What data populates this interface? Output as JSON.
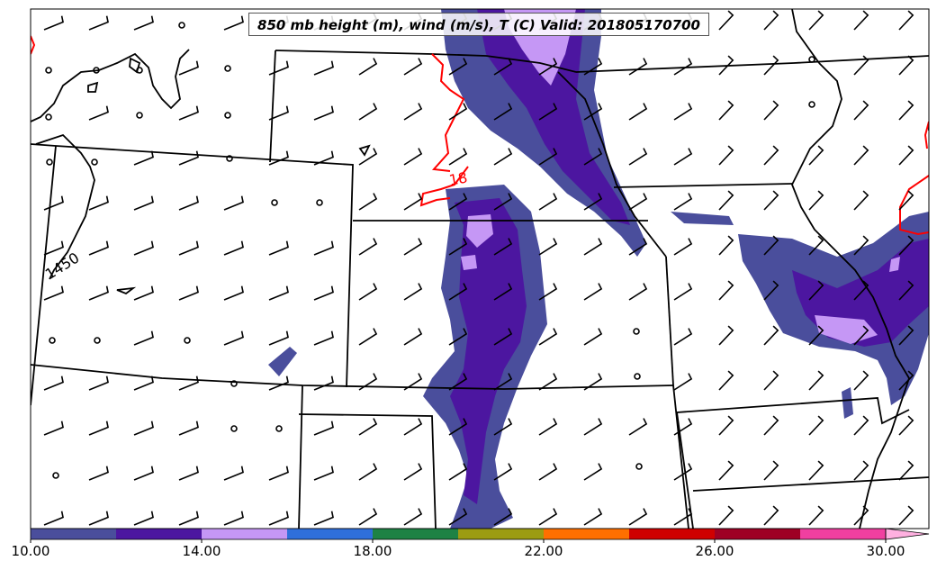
{
  "title": "850 mb height (m), wind (m/s), T (C) Valid: 201805170700",
  "contour_labels": {
    "height": "1450",
    "temperature": "18"
  },
  "colorbar": {
    "min": 10,
    "max": 30,
    "step": 2,
    "extend": "max",
    "colors": [
      "#4a4e9c",
      "#4c16a0",
      "#c597f5",
      "#2f6fdb",
      "#1d8244",
      "#9c9c12",
      "#ff6f00",
      "#cf0000",
      "#9e0024",
      "#f03fa0"
    ],
    "extend_color": "#ffb0e0",
    "ticks": [
      "10.00",
      "14.00",
      "18.00",
      "22.00",
      "26.00",
      "30.00"
    ]
  },
  "colors": {
    "height_contour": "#000000",
    "temperature_contour": "#ff0000",
    "boundaries": "#000000"
  }
}
